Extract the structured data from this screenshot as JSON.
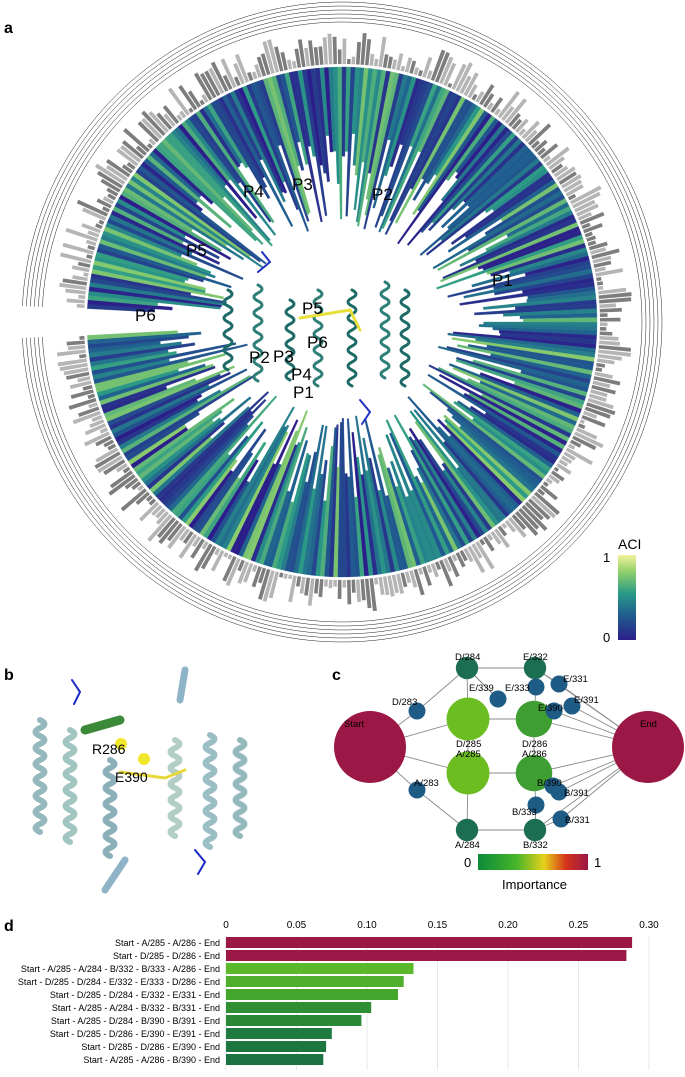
{
  "panels": {
    "a": "a",
    "b": "b",
    "c": "c",
    "d": "d"
  },
  "panel_a": {
    "pocket_labels_outer": [
      "P1",
      "P2",
      "P3",
      "P4",
      "P5",
      "P6"
    ],
    "pocket_labels_inner": [
      "P1",
      "P2",
      "P3",
      "P4",
      "P5",
      "P6"
    ],
    "colorbar": {
      "title": "ACI",
      "max_label": "1",
      "min_label": "0"
    },
    "colors": {
      "low": "#3b1e8c",
      "mid": "#2a8a88",
      "high": "#f2ee9a",
      "grey_bars": "#8a8a8a"
    }
  },
  "panel_b": {
    "residue_labels": [
      "R286",
      "E390"
    ]
  },
  "panel_c": {
    "nodes": [
      {
        "id": "Start",
        "label": "Start",
        "importance": 1.0
      },
      {
        "id": "End",
        "label": "End",
        "importance": 1.0
      },
      {
        "id": "D/285",
        "label": "D/285",
        "importance": 0.3
      },
      {
        "id": "D/286",
        "label": "D/286",
        "importance": 0.2
      },
      {
        "id": "A/285",
        "label": "A/285",
        "importance": 0.3
      },
      {
        "id": "A/286",
        "label": "A/286",
        "importance": 0.2
      },
      {
        "id": "D/284",
        "label": "D/284",
        "importance": 0.05
      },
      {
        "id": "E/332",
        "label": "E/332",
        "importance": 0.05
      },
      {
        "id": "A/284",
        "label": "A/284",
        "importance": 0.05
      },
      {
        "id": "B/332",
        "label": "B/332",
        "importance": 0.05
      },
      {
        "id": "E/331",
        "label": "E/331",
        "importance": 0.02
      },
      {
        "id": "E/339",
        "label": "E/339",
        "importance": 0.02
      },
      {
        "id": "E/333",
        "label": "E/333",
        "importance": 0.02
      },
      {
        "id": "E/391",
        "label": "E/391",
        "importance": 0.02
      },
      {
        "id": "E/390",
        "label": "E/390",
        "importance": 0.02
      },
      {
        "id": "D/283",
        "label": "D/283",
        "importance": 0.02
      },
      {
        "id": "A/283",
        "label": "A/283",
        "importance": 0.02
      },
      {
        "id": "B/390",
        "label": "B/390",
        "importance": 0.02
      },
      {
        "id": "B/391",
        "label": "B/391",
        "importance": 0.02
      },
      {
        "id": "B/333",
        "label": "B/333",
        "importance": 0.02
      },
      {
        "id": "B/331",
        "label": "B/331",
        "importance": 0.02
      }
    ],
    "colorbar": {
      "min_label": "0",
      "max_label": "1",
      "title": "Importance"
    }
  },
  "chart_data": {
    "type": "bar",
    "orientation": "horizontal",
    "categories": [
      "Start - A/285 - A/286 - End",
      "Start - D/285 - D/286 - End",
      "Start - A/285 - A/284 - B/332 - B/333 - A/286 - End",
      "Start - D/285 - D/284 - E/332 - E/333 - D/286 - End",
      "Start - D/285 - D/284 - E/332 - E/331 - End",
      "Start - A/285 - A/284 - B/332 - B/331 - End",
      "Start - A/285 - D/284 - B/390 - B/391 - End",
      "Start - D/285 - D/286 - E/390 - E/391 - End",
      "Start - D/285 - D/286 - E/390 - End",
      "Start - A/285 - A/286 - B/390 - End"
    ],
    "values": [
      0.288,
      0.284,
      0.133,
      0.126,
      0.122,
      0.103,
      0.096,
      0.075,
      0.071,
      0.069
    ],
    "colors": [
      "#9b1746",
      "#9b1746",
      "#5cb82b",
      "#4fae2c",
      "#45a62e",
      "#2e8f34",
      "#2a8835",
      "#1f7a40",
      "#1d7640",
      "#1b7342"
    ],
    "xlim": [
      0,
      0.3
    ],
    "xticks": [
      "0",
      "0.05",
      "0.10",
      "0.15",
      "0.20",
      "0.25",
      "0.30"
    ],
    "xlabel": "",
    "ylabel": "",
    "grid": true
  }
}
